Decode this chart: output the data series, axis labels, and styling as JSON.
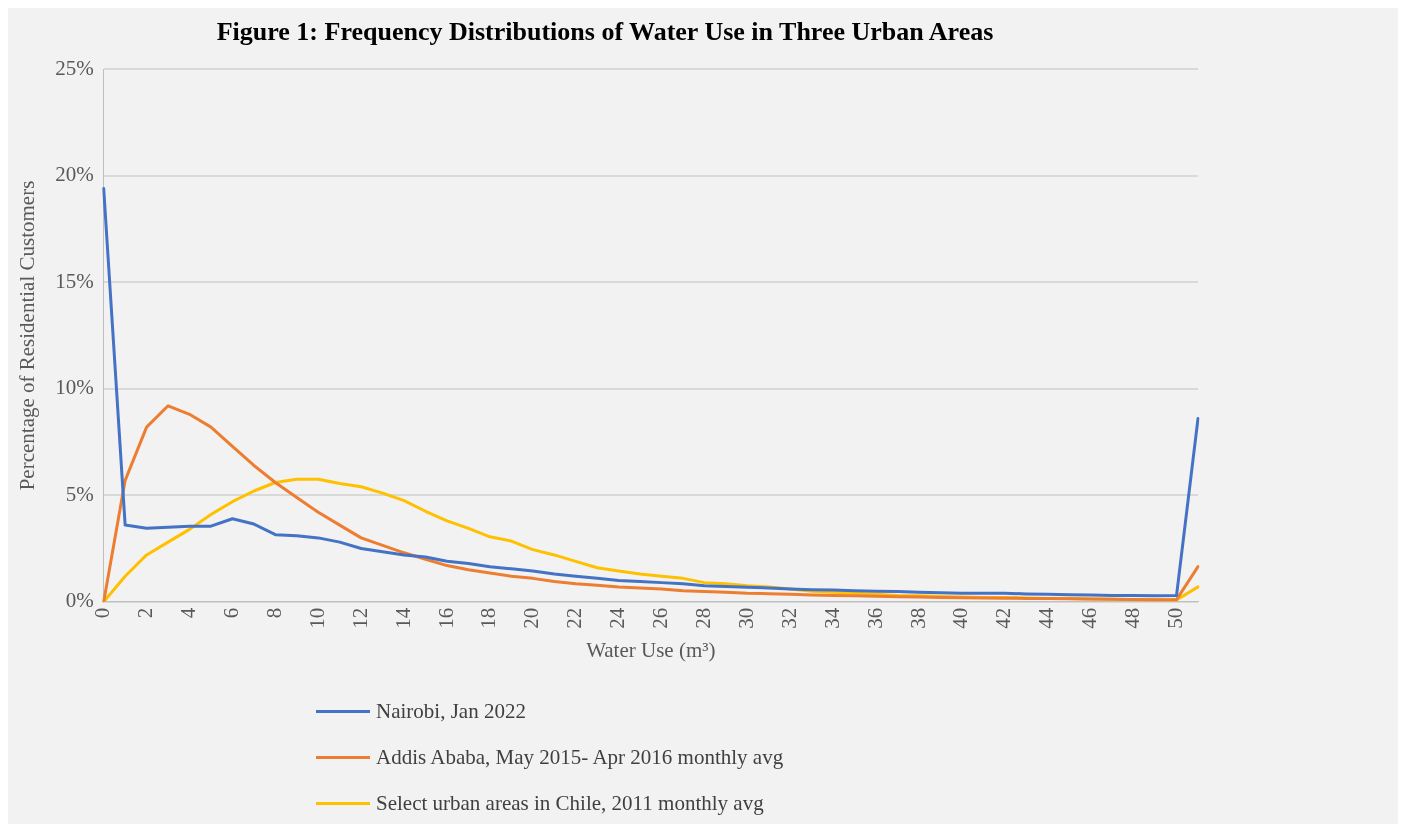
{
  "chart_data": {
    "type": "line",
    "title": "Figure 1: Frequency Distributions of Water Use in Three Urban Areas",
    "xlabel": "Water Use (m³)",
    "ylabel": "Percentage of Residential Customers",
    "categories": [
      "0",
      null,
      "2",
      null,
      "4",
      null,
      "6",
      null,
      "8",
      null,
      "10",
      null,
      "12",
      null,
      "14",
      null,
      "16",
      null,
      "18",
      null,
      "20",
      null,
      "22",
      null,
      "24",
      null,
      "26",
      null,
      "28",
      null,
      "30",
      null,
      "32",
      null,
      "34",
      null,
      "36",
      null,
      "38",
      null,
      "40",
      null,
      "42",
      null,
      "44",
      null,
      "46",
      null,
      "48",
      null,
      "50",
      null
    ],
    "series": [
      {
        "name": "Nairobi, Jan 2022",
        "color": "#4472c4",
        "values": [
          19.4,
          3.6,
          3.45,
          3.5,
          3.55,
          3.55,
          3.9,
          3.65,
          3.15,
          3.1,
          3.0,
          2.8,
          2.5,
          2.35,
          2.2,
          2.1,
          1.9,
          1.8,
          1.65,
          1.55,
          1.45,
          1.3,
          1.2,
          1.1,
          1.0,
          0.95,
          0.9,
          0.85,
          0.75,
          0.72,
          0.68,
          0.65,
          0.6,
          0.57,
          0.55,
          0.52,
          0.5,
          0.48,
          0.45,
          0.42,
          0.4,
          0.4,
          0.4,
          0.37,
          0.35,
          0.33,
          0.32,
          0.3,
          0.3,
          0.28,
          0.3,
          8.6
        ]
      },
      {
        "name": "Addis Ababa, May 2015- Apr 2016 monthly avg",
        "color": "#ed7d31",
        "values": [
          0,
          5.7,
          8.2,
          9.2,
          8.8,
          8.2,
          7.3,
          6.4,
          5.6,
          4.9,
          4.2,
          3.6,
          3.0,
          2.65,
          2.3,
          2.0,
          1.7,
          1.5,
          1.35,
          1.2,
          1.1,
          0.95,
          0.85,
          0.78,
          0.7,
          0.65,
          0.6,
          0.52,
          0.48,
          0.45,
          0.4,
          0.38,
          0.35,
          0.32,
          0.3,
          0.28,
          0.26,
          0.24,
          0.22,
          0.2,
          0.19,
          0.18,
          0.17,
          0.16,
          0.15,
          0.14,
          0.13,
          0.12,
          0.11,
          0.1,
          0.1,
          1.65
        ]
      },
      {
        "name": "Select urban areas in Chile, 2011 monthly avg",
        "color": "#ffc000",
        "values": [
          0,
          1.2,
          2.2,
          2.8,
          3.4,
          4.1,
          4.7,
          5.2,
          5.6,
          5.75,
          5.75,
          5.55,
          5.4,
          5.1,
          4.75,
          4.25,
          3.8,
          3.45,
          3.05,
          2.85,
          2.45,
          2.2,
          1.9,
          1.6,
          1.45,
          1.3,
          1.2,
          1.1,
          0.9,
          0.85,
          0.75,
          0.7,
          0.6,
          0.5,
          0.45,
          0.4,
          0.35,
          0.3,
          0.28,
          0.25,
          0.22,
          0.2,
          0.2,
          0.18,
          0.16,
          0.15,
          0.13,
          0.12,
          0.1,
          0.1,
          0.08,
          0.7
        ]
      }
    ],
    "ylim": [
      0,
      25
    ],
    "yticks": [
      {
        "value": 0,
        "label": "0%"
      },
      {
        "value": 5,
        "label": "5%"
      },
      {
        "value": 10,
        "label": "10%"
      },
      {
        "value": 15,
        "label": "15%"
      },
      {
        "value": 20,
        "label": "20%"
      },
      {
        "value": 25,
        "label": "25%"
      }
    ],
    "grid": "y",
    "legend": "bottom",
    "marker": "none",
    "line_style": "solid"
  }
}
